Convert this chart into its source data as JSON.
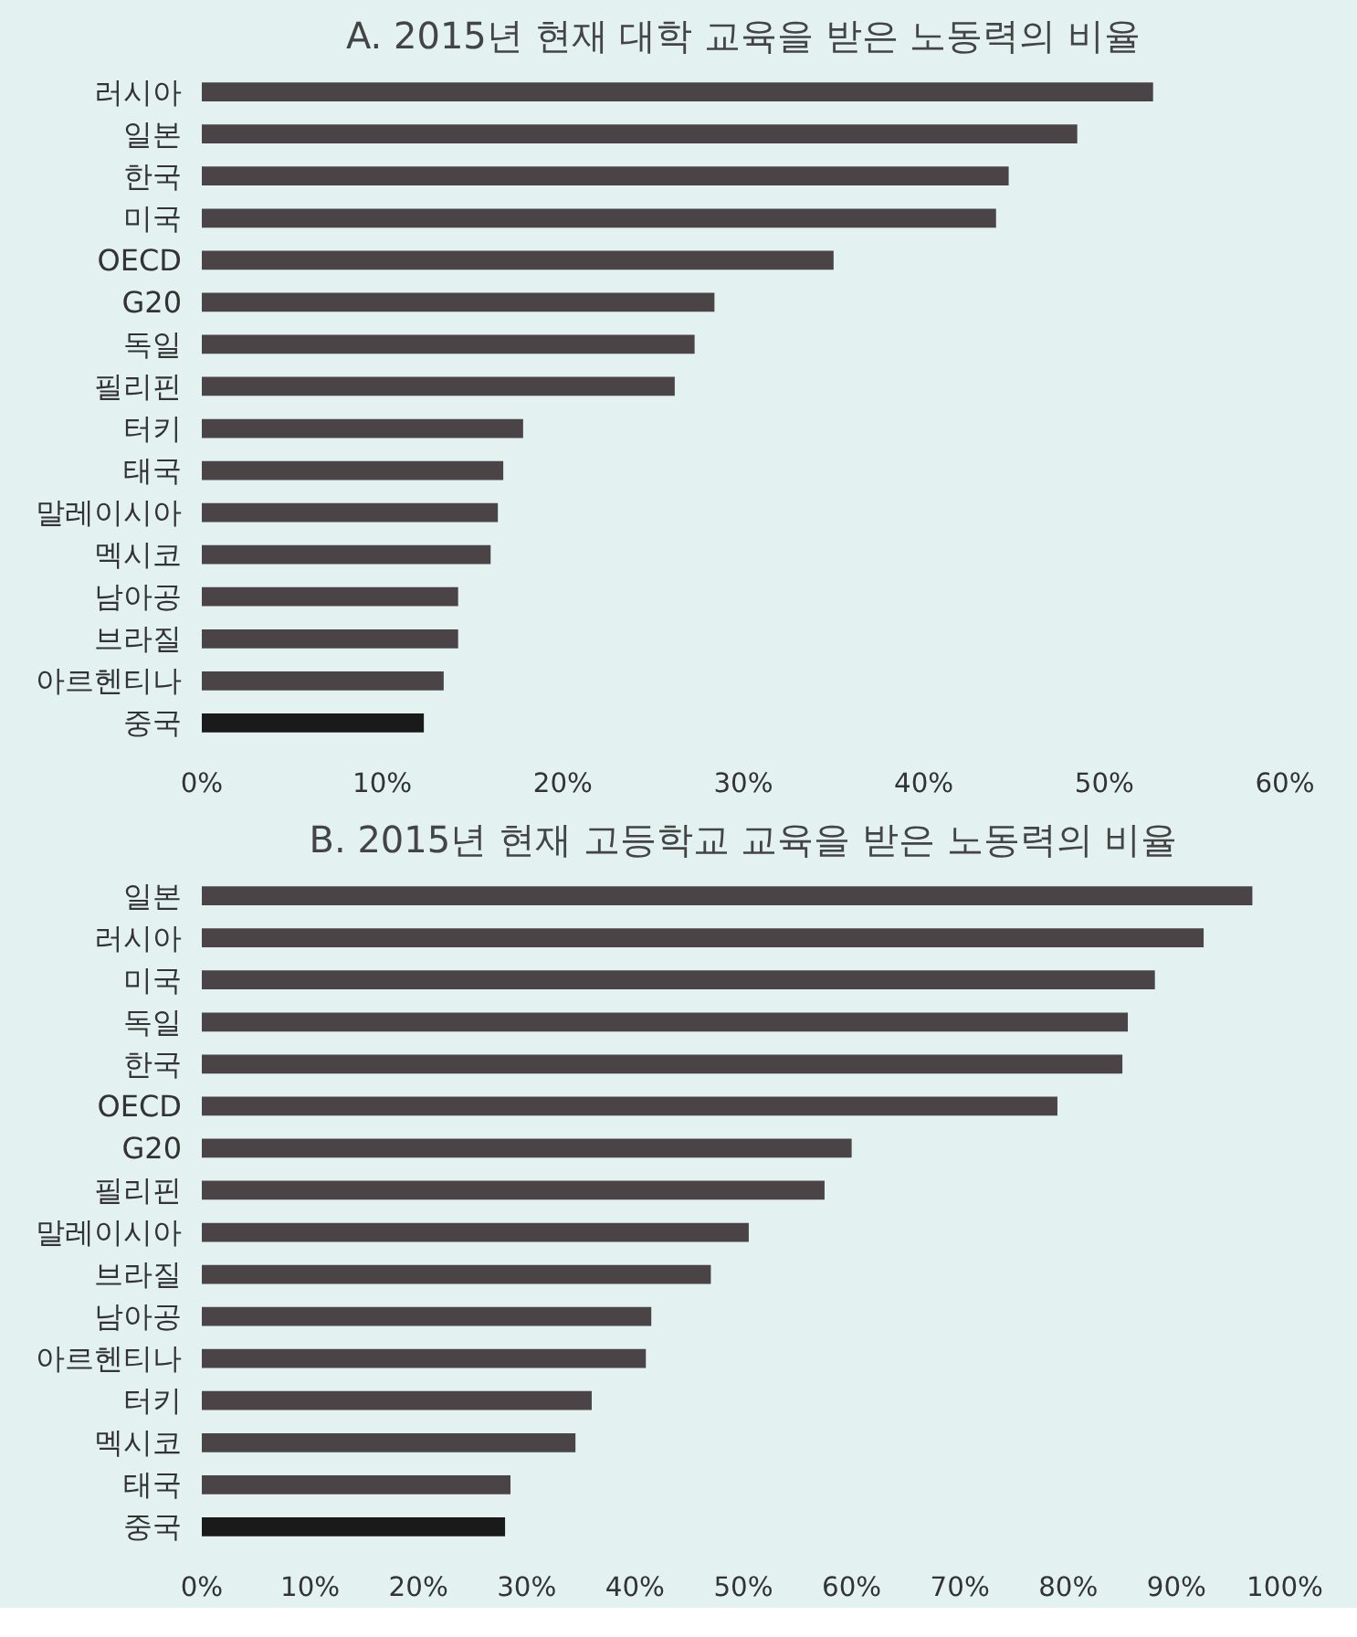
{
  "chart_data": [
    {
      "type": "bar",
      "orientation": "horizontal",
      "title": "A. 2015년 현재 대학 교육을 받은 노동력의 비율",
      "categories": [
        "러시아",
        "일본",
        "한국",
        "미국",
        "OECD",
        "G20",
        "독일",
        "필리핀",
        "터키",
        "태국",
        "말레이시아",
        "멕시코",
        "남아공",
        "브라질",
        "아르헨티나",
        "중국"
      ],
      "values": [
        52.7,
        48.5,
        44.7,
        44,
        35,
        28.4,
        27.3,
        26.2,
        17.8,
        16.7,
        16.4,
        16,
        14.2,
        14.2,
        13.4,
        12.3
      ],
      "colors": [
        "#4a4446",
        "#4a4446",
        "#4a4446",
        "#4a4446",
        "#4a4446",
        "#4a4446",
        "#4a4446",
        "#4a4446",
        "#4a4446",
        "#4a4446",
        "#4a4446",
        "#4a4446",
        "#4a4446",
        "#4a4446",
        "#4a4446",
        "#1a1a1a"
      ],
      "xlim": [
        0,
        60
      ],
      "xticks": [
        {
          "value": 0,
          "label": "0%"
        },
        {
          "value": 10,
          "label": "10%"
        },
        {
          "value": 20,
          "label": "20%"
        },
        {
          "value": 30,
          "label": "30%"
        },
        {
          "value": 40,
          "label": "40%"
        },
        {
          "value": 50,
          "label": "50%"
        },
        {
          "value": 60,
          "label": "60%"
        }
      ],
      "grid": false
    },
    {
      "type": "bar",
      "orientation": "horizontal",
      "title": "B. 2015년 현재 고등학교 교육을 받은 노동력의 비율",
      "categories": [
        "일본",
        "러시아",
        "미국",
        "독일",
        "한국",
        "OECD",
        "G20",
        "필리핀",
        "말레이시아",
        "브라질",
        "남아공",
        "아르헨티나",
        "터키",
        "멕시코",
        "태국",
        "중국"
      ],
      "values": [
        97,
        92.5,
        88,
        85.5,
        85,
        79,
        60,
        57.5,
        50.5,
        47,
        41.5,
        41,
        36,
        34.5,
        28.5,
        28
      ],
      "colors": [
        "#4a4446",
        "#4a4446",
        "#4a4446",
        "#4a4446",
        "#4a4446",
        "#4a4446",
        "#4a4446",
        "#4a4446",
        "#4a4446",
        "#4a4446",
        "#4a4446",
        "#4a4446",
        "#4a4446",
        "#4a4446",
        "#4a4446",
        "#1a1a1a"
      ],
      "xlim": [
        0,
        100
      ],
      "xticks": [
        {
          "value": 0,
          "label": "0%"
        },
        {
          "value": 10,
          "label": "10%"
        },
        {
          "value": 20,
          "label": "20%"
        },
        {
          "value": 30,
          "label": "30%"
        },
        {
          "value": 40,
          "label": "40%"
        },
        {
          "value": 50,
          "label": "50%"
        },
        {
          "value": 60,
          "label": "60%"
        },
        {
          "value": 70,
          "label": "70%"
        },
        {
          "value": 80,
          "label": "80%"
        },
        {
          "value": 90,
          "label": "90%"
        },
        {
          "value": 100,
          "label": "100%"
        }
      ],
      "grid": false
    }
  ]
}
